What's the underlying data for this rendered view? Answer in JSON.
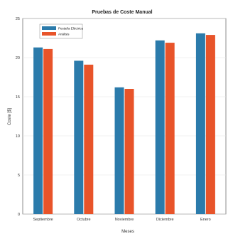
{
  "chart_data": {
    "type": "bar",
    "title": "Pruebas de Coste Manual",
    "xlabel": "Meses",
    "ylabel": "Coste [$]",
    "ylim": [
      0,
      25
    ],
    "yticks": [
      0,
      5,
      10,
      15,
      20,
      25
    ],
    "categories": [
      "Septiembre",
      "Octubre",
      "Noviembre",
      "Diciembre",
      "Enero"
    ],
    "series": [
      {
        "name": "Pestaña Eléctrica",
        "color": "#2b7bab",
        "values": [
          21.3,
          19.6,
          16.2,
          22.2,
          23.1
        ]
      },
      {
        "name": "Análisis",
        "color": "#e8542a",
        "values": [
          21.1,
          19.1,
          16.0,
          21.9,
          22.9
        ]
      }
    ],
    "grid": true,
    "legend_position": "top-left"
  }
}
